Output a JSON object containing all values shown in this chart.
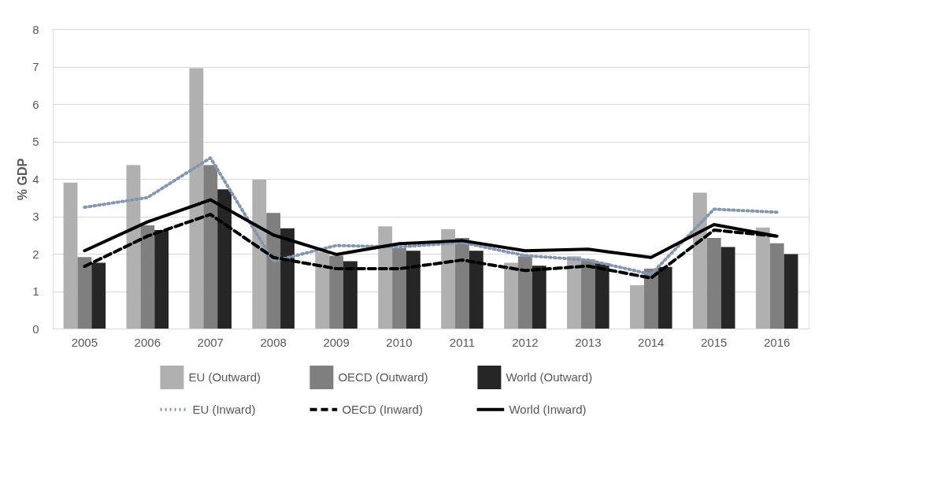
{
  "chart_data": {
    "type": "bar",
    "ylabel": "% GDP",
    "categories": [
      "2005",
      "2006",
      "2007",
      "2008",
      "2009",
      "2010",
      "2011",
      "2012",
      "2013",
      "2014",
      "2015",
      "2016"
    ],
    "series": [
      {
        "name": "EU (Outward)",
        "color": "#b0b0b0",
        "values": [
          3.9,
          4.37,
          6.96,
          3.98,
          2.05,
          2.73,
          2.66,
          1.76,
          1.93,
          1.16,
          3.63,
          2.7
        ]
      },
      {
        "name": "OECD (Outward)",
        "color": "#7f7f7f",
        "values": [
          1.91,
          2.76,
          4.37,
          3.09,
          1.95,
          2.15,
          2.42,
          1.93,
          1.85,
          1.6,
          2.42,
          2.28
        ]
      },
      {
        "name": "World (Outward)",
        "color": "#262626",
        "values": [
          1.76,
          2.63,
          3.72,
          2.68,
          1.8,
          2.08,
          2.08,
          1.68,
          1.74,
          1.65,
          2.18,
          1.99
        ]
      },
      {
        "name": "EU (Inward)",
        "type": "line",
        "color": "#8497b0",
        "line_style": "dotted",
        "values": [
          3.24,
          3.5,
          4.56,
          1.8,
          2.22,
          2.18,
          2.3,
          1.95,
          1.83,
          1.45,
          3.19,
          3.11
        ]
      },
      {
        "name": "OECD (Inward)",
        "type": "line",
        "color": "#000000",
        "line_style": "dashed",
        "values": [
          1.66,
          2.47,
          3.05,
          1.9,
          1.6,
          1.6,
          1.83,
          1.55,
          1.67,
          1.35,
          2.63,
          2.47
        ]
      },
      {
        "name": "World (Inward)",
        "type": "line",
        "color": "#000000",
        "line_style": "solid",
        "values": [
          2.08,
          2.85,
          3.44,
          2.5,
          1.98,
          2.27,
          2.35,
          2.08,
          2.12,
          1.9,
          2.78,
          2.47
        ]
      }
    ],
    "ylim": [
      0,
      8
    ],
    "yticks": [
      0,
      1,
      2,
      3,
      4,
      5,
      6,
      7,
      8
    ],
    "grid": "y",
    "legend": "bottom"
  }
}
